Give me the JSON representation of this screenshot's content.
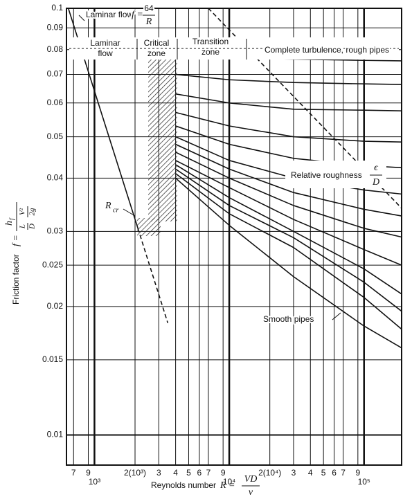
{
  "chart_data": {
    "type": "line",
    "log_x": true,
    "log_y": true,
    "grid": true,
    "xlim": [
      620,
      190000
    ],
    "ylim": [
      0.0085,
      0.1
    ],
    "xticks": [
      {
        "value": 700,
        "label": "7"
      },
      {
        "value": 900,
        "label": "9"
      },
      {
        "value": 1000,
        "label": "10³"
      },
      {
        "value": 2000,
        "label": "2(10³)"
      },
      {
        "value": 3000,
        "label": "3"
      },
      {
        "value": 4000,
        "label": "4"
      },
      {
        "value": 5000,
        "label": "5"
      },
      {
        "value": 6000,
        "label": "6"
      },
      {
        "value": 7000,
        "label": "7"
      },
      {
        "value": 9000,
        "label": "9"
      },
      {
        "value": 10000,
        "label": "10⁴"
      },
      {
        "value": 20000,
        "label": "2(10⁴)"
      },
      {
        "value": 30000,
        "label": "3"
      },
      {
        "value": 40000,
        "label": "4"
      },
      {
        "value": 50000,
        "label": "5"
      },
      {
        "value": 60000,
        "label": "6"
      },
      {
        "value": 70000,
        "label": "7"
      },
      {
        "value": 90000,
        "label": "9"
      },
      {
        "value": 100000,
        "label": "10⁵"
      }
    ],
    "yticks": [
      0.1,
      0.09,
      0.08,
      0.07,
      0.06,
      0.05,
      0.04,
      0.03,
      0.025,
      0.02,
      0.015,
      0.01
    ],
    "x_label": {
      "text": "Reynolds number",
      "symbol": "R =",
      "numerator": "VD",
      "denominator": "ν"
    },
    "y_label": {
      "text": "Friction factor",
      "symbol": "f =",
      "numerator": "h",
      "numerator_sub": "f",
      "denominator": [
        "L",
        "D",
        "V²",
        "2g"
      ]
    },
    "annotations": {
      "laminar_formula": {
        "text": "Laminar flow",
        "symbol": "f =",
        "numerator": "64",
        "denominator": "R"
      },
      "zones": [
        [
          "Laminar",
          "flow"
        ],
        [
          "Critical",
          "zone"
        ],
        [
          "Transition",
          "zone"
        ],
        [
          "Complete turbulence, rough pipes"
        ]
      ],
      "relative_roughness": {
        "text": "Relative roughness",
        "numerator": "ϵ",
        "denominator": "D"
      },
      "critical_reynolds": {
        "text": "R",
        "sub": "cr"
      },
      "smooth": "Smooth pipes"
    },
    "series": [
      {
        "color": "#111",
        "dashed": false,
        "x": [
          640,
          1000,
          2100
        ],
        "values": [
          0.1,
          0.064,
          0.0305
        ]
      },
      {
        "color": "#111",
        "dashed": true,
        "x": [
          2100,
          3500
        ],
        "values": [
          0.0305,
          0.0183
        ]
      },
      {
        "color": "#111",
        "dashed": true,
        "x": [
          7000,
          190000
        ],
        "values": [
          0.1,
          0.034
        ]
      },
      {
        "color": "#111",
        "dashed": false,
        "x": [
          4000,
          10000,
          30000,
          100000,
          190000
        ],
        "values": [
          0.077,
          0.0765,
          0.076,
          0.0755,
          0.0753
        ]
      },
      {
        "color": "#111",
        "dashed": false,
        "x": [
          4000,
          10000,
          30000,
          100000,
          190000
        ],
        "values": [
          0.07,
          0.068,
          0.067,
          0.0665,
          0.0663
        ]
      },
      {
        "color": "#111",
        "dashed": false,
        "x": [
          4000,
          10000,
          30000,
          100000,
          190000
        ],
        "values": [
          0.063,
          0.06,
          0.058,
          0.0577,
          0.0575
        ]
      },
      {
        "color": "#111",
        "dashed": false,
        "x": [
          4000,
          10000,
          30000,
          100000,
          190000
        ],
        "values": [
          0.057,
          0.053,
          0.05,
          0.0488,
          0.0486
        ]
      },
      {
        "color": "#111",
        "dashed": false,
        "x": [
          4000,
          10000,
          30000,
          100000,
          190000
        ],
        "values": [
          0.053,
          0.048,
          0.0445,
          0.0428,
          0.0423
        ]
      },
      {
        "color": "#111",
        "dashed": false,
        "x": [
          4000,
          10000,
          30000,
          100000,
          190000
        ],
        "values": [
          0.05,
          0.044,
          0.04,
          0.0375,
          0.0367
        ]
      },
      {
        "color": "#111",
        "dashed": false,
        "x": [
          4000,
          10000,
          30000,
          100000,
          190000
        ],
        "values": [
          0.048,
          0.042,
          0.037,
          0.0338,
          0.0326
        ]
      },
      {
        "color": "#111",
        "dashed": false,
        "x": [
          4000,
          10000,
          30000,
          100000,
          190000
        ],
        "values": [
          0.046,
          0.04,
          0.0345,
          0.0305,
          0.0291
        ]
      },
      {
        "color": "#111",
        "dashed": false,
        "x": [
          4000,
          10000,
          30000,
          100000,
          190000
        ],
        "values": [
          0.044,
          0.038,
          0.032,
          0.0272,
          0.025
        ]
      },
      {
        "color": "#111",
        "dashed": false,
        "x": [
          4000,
          10000,
          30000,
          100000,
          190000
        ],
        "values": [
          0.043,
          0.036,
          0.03,
          0.0245,
          0.0214
        ]
      },
      {
        "color": "#111",
        "dashed": false,
        "x": [
          4000,
          10000,
          30000,
          100000,
          190000
        ],
        "values": [
          0.042,
          0.0345,
          0.029,
          0.0228,
          0.0195
        ]
      },
      {
        "color": "#111",
        "dashed": false,
        "x": [
          4000,
          10000,
          30000,
          100000,
          190000
        ],
        "values": [
          0.041,
          0.033,
          0.0275,
          0.021,
          0.0177
        ]
      },
      {
        "color": "#111",
        "dashed": false,
        "x": [
          4000,
          10000,
          30000,
          100000,
          190000
        ],
        "values": [
          0.04,
          0.031,
          0.0235,
          0.018,
          0.016
        ]
      }
    ]
  }
}
